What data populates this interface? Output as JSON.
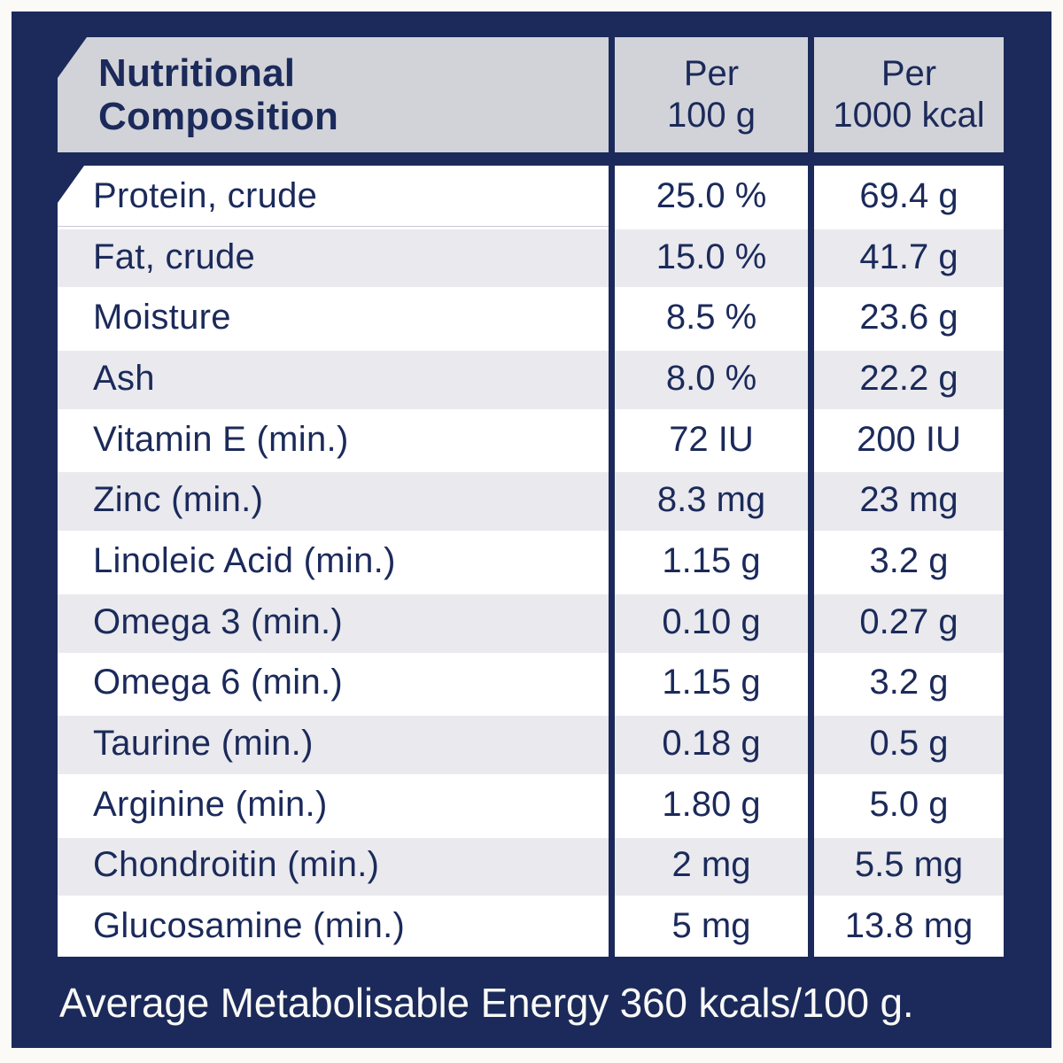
{
  "colors": {
    "panel_navy": "#1b2a5a",
    "header_gray": "#d2d3d8",
    "stripe_gray": "#e9e9ee",
    "row_white": "#ffffff",
    "text_navy": "#1b2a5a",
    "footer_text": "#f9f9f7",
    "page_margin": "#fbfaf6"
  },
  "table": {
    "title": "Nutritional\nComposition",
    "col_headers": [
      "Per\n100 g",
      "Per\n1000 kcal"
    ],
    "rows": [
      {
        "label": "Protein, crude",
        "per_100g": "25.0 %",
        "per_1000kcal": "69.4 g"
      },
      {
        "label": "Fat, crude",
        "per_100g": "15.0 %",
        "per_1000kcal": "41.7 g"
      },
      {
        "label": "Moisture",
        "per_100g": "8.5 %",
        "per_1000kcal": "23.6 g"
      },
      {
        "label": "Ash",
        "per_100g": "8.0 %",
        "per_1000kcal": "22.2 g"
      },
      {
        "label": "Vitamin E (min.)",
        "per_100g": "72 IU",
        "per_1000kcal": "200 IU"
      },
      {
        "label": "Zinc (min.)",
        "per_100g": "8.3 mg",
        "per_1000kcal": "23 mg"
      },
      {
        "label": "Linoleic Acid (min.)",
        "per_100g": "1.15 g",
        "per_1000kcal": "3.2 g"
      },
      {
        "label": "Omega 3 (min.)",
        "per_100g": "0.10 g",
        "per_1000kcal": "0.27 g"
      },
      {
        "label": "Omega 6 (min.)",
        "per_100g": "1.15 g",
        "per_1000kcal": "3.2 g"
      },
      {
        "label": "Taurine (min.)",
        "per_100g": "0.18 g",
        "per_1000kcal": "0.5 g"
      },
      {
        "label": "Arginine (min.)",
        "per_100g": "1.80 g",
        "per_1000kcal": "5.0 g"
      },
      {
        "label": "Chondroitin (min.)",
        "per_100g": "2 mg",
        "per_1000kcal": "5.5 mg"
      },
      {
        "label": "Glucosamine (min.)",
        "per_100g": "5 mg",
        "per_1000kcal": "13.8 mg"
      }
    ]
  },
  "footer": {
    "text": "Average Metabolisable Energy 360 kcals/100 g."
  },
  "chart_data": {
    "type": "table",
    "title": "Nutritional Composition",
    "columns": [
      "Nutritional Composition",
      "Per 100 g",
      "Per 1000 kcal"
    ],
    "rows": [
      [
        "Protein, crude",
        "25.0 %",
        "69.4 g"
      ],
      [
        "Fat, crude",
        "15.0 %",
        "41.7 g"
      ],
      [
        "Moisture",
        "8.5 %",
        "23.6 g"
      ],
      [
        "Ash",
        "8.0 %",
        "22.2 g"
      ],
      [
        "Vitamin E (min.)",
        "72 IU",
        "200 IU"
      ],
      [
        "Zinc (min.)",
        "8.3 mg",
        "23 mg"
      ],
      [
        "Linoleic Acid (min.)",
        "1.15 g",
        "3.2 g"
      ],
      [
        "Omega 3 (min.)",
        "0.10 g",
        "0.27 g"
      ],
      [
        "Omega 6 (min.)",
        "1.15 g",
        "3.2 g"
      ],
      [
        "Taurine (min.)",
        "0.18 g",
        "0.5 g"
      ],
      [
        "Arginine (min.)",
        "1.80 g",
        "5.0 g"
      ],
      [
        "Chondroitin (min.)",
        "2 mg",
        "5.5 mg"
      ],
      [
        "Glucosamine (min.)",
        "5 mg",
        "13.8 mg"
      ]
    ],
    "footnote": "Average Metabolisable Energy 360 kcals/100 g."
  }
}
